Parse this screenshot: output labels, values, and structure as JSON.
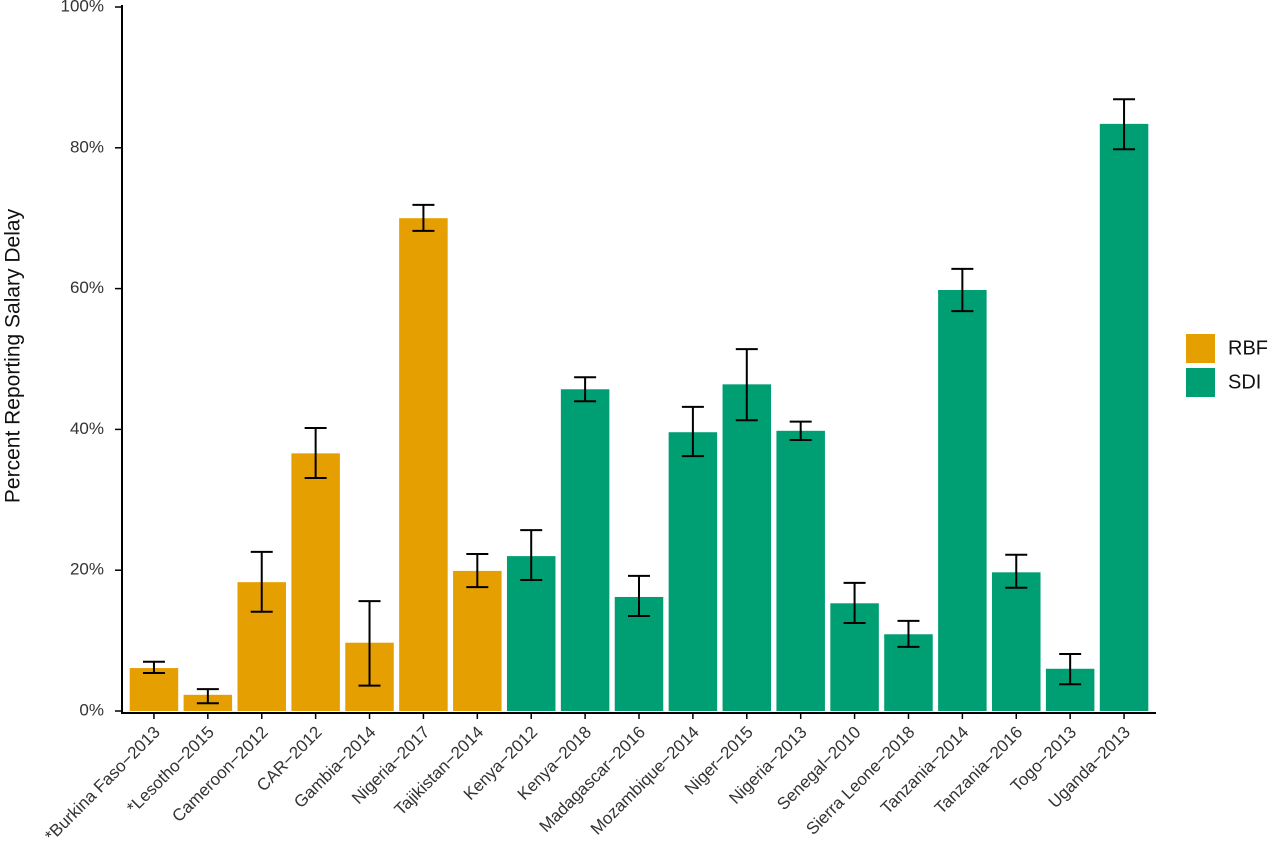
{
  "chart_data": {
    "type": "bar",
    "y_label": "Percent Reporting Salary Delay",
    "categories": [
      "*Burkina Faso−2013",
      "*Lesotho−2015",
      "Cameroon−2012",
      "CAR−2012",
      "Gambia−2014",
      "Nigeria−2017",
      "Tajikistan−2014",
      "Kenya−2012",
      "Kenya−2018",
      "Madagascar−2016",
      "Mozambique−2014",
      "Niger−2015",
      "Nigeria−2013",
      "Senegal−2010",
      "Sierra Leone−2018",
      "Tanzania−2014",
      "Tanzania−2016",
      "Togo−2013",
      "Uganda−2013"
    ],
    "series": [
      {
        "name": "RBF",
        "color": "#e69f00",
        "values": [
          6.1,
          2.3,
          18.3,
          36.6,
          9.7,
          70.0,
          19.9,
          null,
          null,
          null,
          null,
          null,
          null,
          null,
          null,
          null,
          null,
          null,
          null
        ],
        "error_low": [
          5.4,
          1.1,
          14.1,
          33.1,
          3.6,
          68.2,
          17.6,
          null,
          null,
          null,
          null,
          null,
          null,
          null,
          null,
          null,
          null,
          null,
          null
        ],
        "error_high": [
          7.0,
          3.1,
          22.6,
          40.2,
          15.6,
          71.9,
          22.3,
          null,
          null,
          null,
          null,
          null,
          null,
          null,
          null,
          null,
          null,
          null,
          null
        ]
      },
      {
        "name": "SDI",
        "color": "#009e73",
        "values": [
          null,
          null,
          null,
          null,
          null,
          null,
          null,
          22.0,
          45.7,
          16.2,
          39.6,
          46.4,
          39.8,
          15.3,
          10.9,
          59.8,
          19.7,
          6.0,
          83.4
        ],
        "error_low": [
          null,
          null,
          null,
          null,
          null,
          null,
          null,
          18.6,
          44.0,
          13.5,
          36.2,
          41.3,
          38.5,
          12.5,
          9.1,
          56.8,
          17.5,
          3.8,
          79.8
        ],
        "error_high": [
          null,
          null,
          null,
          null,
          null,
          null,
          null,
          25.7,
          47.4,
          19.2,
          43.2,
          51.4,
          41.1,
          18.2,
          12.8,
          62.8,
          22.2,
          8.1,
          86.9
        ]
      }
    ],
    "ylim": [
      0,
      100
    ],
    "yticks": [
      {
        "value": 0,
        "label": "0%"
      },
      {
        "value": 20,
        "label": "20%"
      },
      {
        "value": 40,
        "label": "40%"
      },
      {
        "value": 60,
        "label": "60%"
      },
      {
        "value": 80,
        "label": "80%"
      },
      {
        "value": 100,
        "label": "100%"
      }
    ],
    "grid": false,
    "legend": "right"
  }
}
